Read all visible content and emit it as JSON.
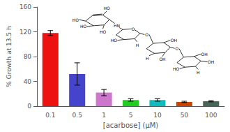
{
  "chart_data": {
    "type": "bar",
    "categories": [
      "0.1",
      "0.5",
      "1",
      "5",
      "10",
      "50",
      "100"
    ],
    "values": [
      118,
      52,
      22,
      10,
      10,
      7,
      8
    ],
    "errors": [
      4,
      18,
      5,
      2,
      2,
      1,
      1
    ],
    "colors": [
      "#ee1111",
      "#4444cc",
      "#cc77cc",
      "#22cc22",
      "#11bbbb",
      "#cc4400",
      "#446655"
    ],
    "xlabel": "[acarbose] (μM)",
    "ylabel": "% Growth at 13.5 h",
    "ylim": [
      0,
      160
    ],
    "yticks": [
      0,
      40,
      80,
      120,
      160
    ],
    "grid": false,
    "annotations": [
      "HO",
      "HO",
      "HO",
      "HO",
      "HN",
      "HO",
      "H",
      "O",
      "O",
      "OH",
      "OH",
      "H",
      "O",
      "OH",
      "OH",
      "H",
      "HO"
    ]
  }
}
